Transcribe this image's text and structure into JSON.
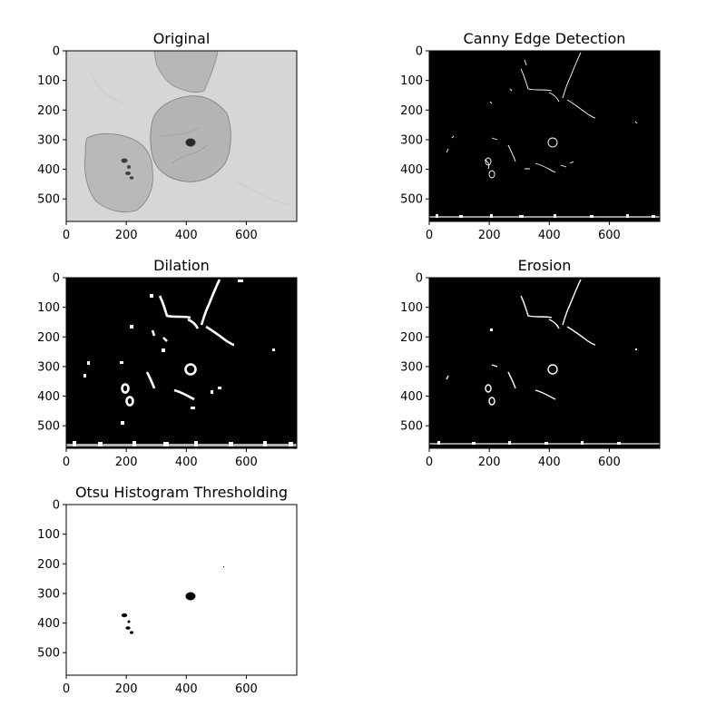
{
  "figure": {
    "panels": [
      {
        "id": "original",
        "title": "Original",
        "style": "gray",
        "xlim": [
          0,
          768
        ],
        "ylim": [
          576,
          0
        ],
        "xticks": [
          0,
          200,
          400,
          600
        ],
        "yticks": [
          0,
          100,
          200,
          300,
          400,
          500
        ]
      },
      {
        "id": "canny",
        "title": "Canny Edge Detection",
        "style": "edges",
        "xlim": [
          0,
          768
        ],
        "ylim": [
          576,
          0
        ],
        "xticks": [
          0,
          200,
          400,
          600
        ],
        "yticks": [
          0,
          100,
          200,
          300,
          400,
          500
        ]
      },
      {
        "id": "dilation",
        "title": "Dilation",
        "style": "edges-thick",
        "xlim": [
          0,
          768
        ],
        "ylim": [
          576,
          0
        ],
        "xticks": [
          0,
          200,
          400,
          600
        ],
        "yticks": [
          0,
          100,
          200,
          300,
          400,
          500
        ]
      },
      {
        "id": "erosion",
        "title": "Erosion",
        "style": "edges",
        "xlim": [
          0,
          768
        ],
        "ylim": [
          576,
          0
        ],
        "xticks": [
          0,
          200,
          400,
          600
        ],
        "yticks": [
          0,
          100,
          200,
          300,
          400,
          500
        ]
      },
      {
        "id": "otsu",
        "title": "Otsu Histogram Thresholding",
        "style": "binary",
        "xlim": [
          0,
          768
        ],
        "ylim": [
          576,
          0
        ],
        "xticks": [
          0,
          200,
          400,
          600
        ],
        "yticks": [
          0,
          100,
          200,
          300,
          400,
          500
        ]
      }
    ]
  }
}
